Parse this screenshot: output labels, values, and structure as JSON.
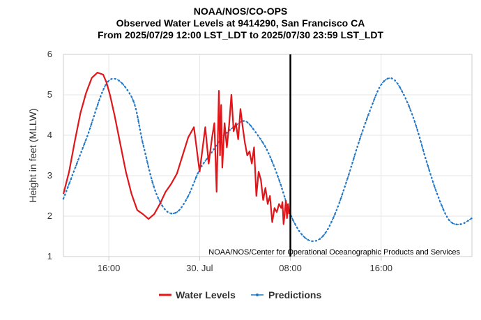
{
  "chart_data": {
    "type": "line",
    "title": [
      "NOAA/NOS/CO-OPS",
      "Observed Water Levels at 9414290, San Francisco CA",
      "From 2025/07/29 12:00 LST_LDT to 2025/07/30 23:59 LST_LDT"
    ],
    "ylabel": "Height in feet (MLLW)",
    "xlabel": "",
    "credit": "NOAA/NOS/Center for Operational Oceanographic Products and Services",
    "x_unit": "hours since 2025/07/29 12:00",
    "xlim": [
      0,
      36
    ],
    "ylim": [
      1,
      6
    ],
    "yticks": [
      1,
      2,
      3,
      4,
      5,
      6
    ],
    "xticks": [
      {
        "x": 4,
        "label": "16:00"
      },
      {
        "x": 12,
        "label": "30. Jul"
      },
      {
        "x": 20,
        "label": "08:00"
      },
      {
        "x": 28,
        "label": "16:00"
      }
    ],
    "grid": true,
    "now_marker_x": 20,
    "legend_position": "bottom-center",
    "series": [
      {
        "name": "Water Levels",
        "color": "#e0161a",
        "style": "solid",
        "x": [
          0,
          0.5,
          1,
          1.5,
          2,
          2.5,
          3,
          3.5,
          3.8,
          4.1,
          4.5,
          5,
          5.5,
          6,
          6.5,
          7,
          7.5,
          8,
          8.5,
          9,
          9.5,
          10,
          10.5,
          11,
          11.5,
          12,
          12.5,
          12.8,
          13.1,
          13.3,
          13.5,
          13.7,
          13.8,
          13.9,
          14.0,
          14.2,
          14.4,
          14.6,
          14.8,
          15.0,
          15.2,
          15.4,
          15.6,
          15.8,
          16.0,
          16.2,
          16.4,
          16.6,
          16.8,
          17.0,
          17.2,
          17.4,
          17.6,
          17.8,
          18.0,
          18.2,
          18.4,
          18.6,
          18.8,
          19.0,
          19.2,
          19.3,
          19.4,
          19.5,
          19.6,
          19.7,
          19.8,
          19.9
        ],
        "values": [
          2.55,
          3.1,
          3.85,
          4.55,
          5.05,
          5.42,
          5.55,
          5.5,
          5.3,
          5.0,
          4.5,
          3.8,
          3.1,
          2.55,
          2.15,
          2.05,
          1.93,
          2.05,
          2.3,
          2.6,
          2.8,
          3.05,
          3.5,
          3.95,
          4.2,
          3.1,
          4.2,
          3.3,
          3.95,
          4.3,
          2.6,
          5.1,
          3.5,
          4.75,
          3.2,
          4.3,
          3.7,
          4.25,
          5.0,
          4.1,
          4.3,
          3.9,
          4.65,
          4.2,
          3.8,
          3.5,
          3.6,
          3.3,
          3.7,
          2.5,
          3.1,
          2.9,
          2.4,
          2.7,
          2.3,
          2.5,
          1.85,
          2.2,
          2.1,
          2.3,
          2.2,
          2.35,
          1.8,
          2.05,
          2.38,
          1.95,
          2.3,
          2.05
        ]
      },
      {
        "name": "Predictions",
        "color": "#1f77c9",
        "style": "dotted-marker",
        "x": [
          0,
          2,
          4,
          6,
          7,
          8,
          9,
          10,
          11,
          12,
          13,
          14,
          15,
          16,
          17,
          18,
          19,
          20,
          21,
          22,
          23,
          24,
          25,
          26,
          27,
          28,
          29,
          30,
          31,
          32,
          33,
          34,
          35,
          36
        ],
        "values": [
          2.43,
          3.9,
          5.35,
          4.95,
          3.8,
          2.7,
          2.15,
          2.1,
          2.5,
          3.15,
          3.55,
          3.95,
          4.2,
          4.35,
          4.05,
          3.6,
          2.9,
          2.05,
          1.55,
          1.38,
          1.55,
          2.1,
          2.9,
          3.8,
          4.6,
          5.25,
          5.4,
          5.0,
          4.3,
          3.35,
          2.5,
          1.9,
          1.8,
          1.95
        ]
      }
    ]
  }
}
